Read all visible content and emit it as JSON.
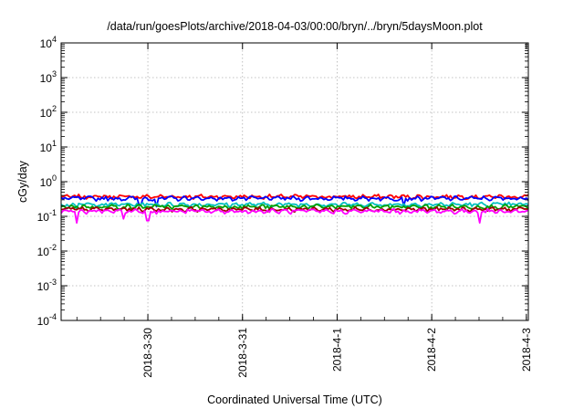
{
  "chart_data": {
    "type": "line",
    "title": "/data/run/goesPlots/archive/2018-04-03/00:00/bryn/../bryn/5daysMoon.plot",
    "xlabel": "Coordinated Universal Time (UTC)",
    "ylabel": "cGy/day",
    "yscale": "log",
    "ylim": [
      0.0001,
      10000
    ],
    "y_ticks": [
      {
        "value": 0.0001,
        "base": "10",
        "exp": "-4"
      },
      {
        "value": 0.001,
        "base": "10",
        "exp": "-3"
      },
      {
        "value": 0.01,
        "base": "10",
        "exp": "-2"
      },
      {
        "value": 0.1,
        "base": "10",
        "exp": "-1"
      },
      {
        "value": 1,
        "base": "10",
        "exp": "0"
      },
      {
        "value": 10,
        "base": "10",
        "exp": "1"
      },
      {
        "value": 100,
        "base": "10",
        "exp": "2"
      },
      {
        "value": 1000,
        "base": "10",
        "exp": "3"
      },
      {
        "value": 10000,
        "base": "10",
        "exp": "4"
      }
    ],
    "xlim": [
      "2018-03-29T02:00",
      "2018-04-03T00:30"
    ],
    "x_ticks": [
      {
        "value": "2018-03-30T00:00",
        "label": "2018-3-30"
      },
      {
        "value": "2018-03-31T00:00",
        "label": "2018-3-31"
      },
      {
        "value": "2018-04-01T00:00",
        "label": "2018-4-1"
      },
      {
        "value": "2018-04-02T00:00",
        "label": "2018-4-2"
      },
      {
        "value": "2018-04-03T00:00",
        "label": "2018-4-3"
      }
    ],
    "grid": true,
    "series": [
      {
        "color": "#ff0000",
        "level": 0.37,
        "dips": []
      },
      {
        "color": "#0000ff",
        "level": 0.33,
        "dips": [
          {
            "x": "2018-03-29T22:00",
            "y": 0.22
          },
          {
            "x": "2018-03-30T02:00",
            "y": 0.19
          },
          {
            "x": "2018-04-01T17:00",
            "y": 0.2
          }
        ]
      },
      {
        "color": "#00c0c0",
        "level": 0.22,
        "dips": [
          {
            "x": "2018-03-29T06:00",
            "y": 0.16
          }
        ]
      },
      {
        "color": "#00a000",
        "level": 0.19,
        "dips": []
      },
      {
        "color": "#a00000",
        "level": 0.16,
        "dips": []
      },
      {
        "color": "#ff00ff",
        "level": 0.14,
        "dips": [
          {
            "x": "2018-03-29T06:00",
            "y": 0.065
          },
          {
            "x": "2018-03-29T18:00",
            "y": 0.085
          },
          {
            "x": "2018-03-30T00:00",
            "y": 0.075
          },
          {
            "x": "2018-04-02T12:00",
            "y": 0.065
          }
        ]
      }
    ]
  }
}
